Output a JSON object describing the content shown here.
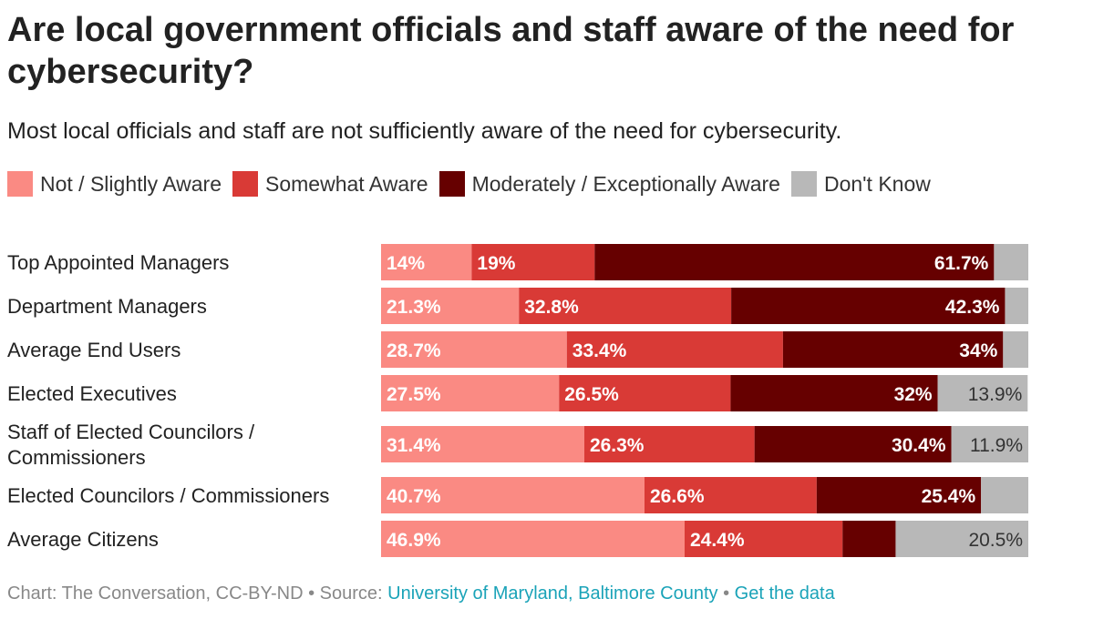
{
  "title": "Are local government officials and staff aware of the need for cybersecurity?",
  "subtitle": "Most local officials and staff are not sufficiently aware of the need for cybersecurity.",
  "colors": {
    "not_slightly": "#fa8a83",
    "somewhat": "#d93a36",
    "moderately_exceptionally": "#660000",
    "dont_know": "#b8b8b8",
    "link": "#1aa3b8"
  },
  "legend": [
    {
      "label": "Not / Slightly Aware",
      "color": "#fa8a83"
    },
    {
      "label": "Somewhat Aware",
      "color": "#d93a36"
    },
    {
      "label": "Moderately / Exceptionally Aware",
      "color": "#660000"
    },
    {
      "label": "Don't Know",
      "color": "#b8b8b8"
    }
  ],
  "footer": {
    "prefix": "Chart: The Conversation, CC-BY-ND • Source: ",
    "source_link": "University of Maryland, Baltimore County",
    "separator": " • ",
    "data_link": "Get the data"
  },
  "chart_data": {
    "type": "bar",
    "orientation": "horizontal",
    "stacked": true,
    "title": "Are local government officials and staff aware of the need for cybersecurity?",
    "subtitle": "Most local officials and staff are not sufficiently aware of the need for cybersecurity.",
    "categories": [
      "Top Appointed Managers",
      "Department Managers",
      "Average End Users",
      "Elected Executives",
      "Staff of Elected Councilors / Commissioners",
      "Elected Councilors / Commissioners",
      "Average Citizens"
    ],
    "series": [
      {
        "name": "Not / Slightly Aware",
        "color": "#fa8a83",
        "values": [
          14,
          21.3,
          28.7,
          27.5,
          31.4,
          40.7,
          46.9
        ],
        "labels": [
          "14%",
          "21.3%",
          "28.7%",
          "27.5%",
          "31.4%",
          "40.7%",
          "46.9%"
        ]
      },
      {
        "name": "Somewhat Aware",
        "color": "#d93a36",
        "values": [
          19,
          32.8,
          33.4,
          26.5,
          26.3,
          26.6,
          24.4
        ],
        "labels": [
          "19%",
          "32.8%",
          "33.4%",
          "26.5%",
          "26.3%",
          "26.6%",
          "24.4%"
        ]
      },
      {
        "name": "Moderately / Exceptionally Aware",
        "color": "#660000",
        "values": [
          61.7,
          42.3,
          34,
          32,
          30.4,
          25.4,
          8.2
        ],
        "labels": [
          "61.7%",
          "42.3%",
          "34%",
          "32%",
          "30.4%",
          "25.4%",
          ""
        ]
      },
      {
        "name": "Don't Know",
        "color": "#b8b8b8",
        "values": [
          5.3,
          3.6,
          3.9,
          13.9,
          11.9,
          7.3,
          20.5
        ],
        "labels": [
          "",
          "",
          "",
          "13.9%",
          "11.9%",
          "",
          "20.5%"
        ]
      }
    ],
    "xlim": [
      0,
      100
    ],
    "grid": false,
    "legend_position": "top-left"
  }
}
